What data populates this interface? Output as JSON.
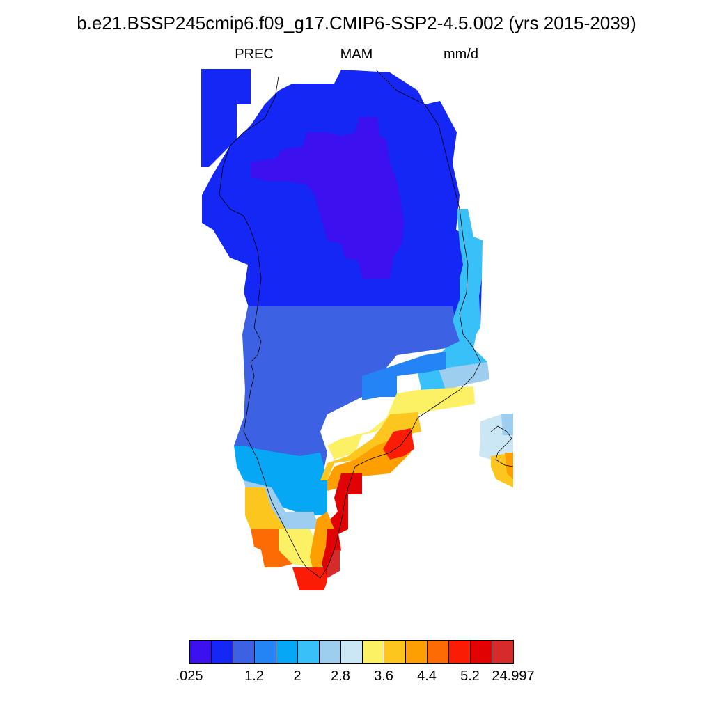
{
  "title": "b.e21.BSSP245cmip6.f09_g17.CMIP6-SSP2-4.5.002 (yrs 2015-2039)",
  "subtitle": {
    "left": "PREC",
    "center": "MAM",
    "right": "mm/d"
  },
  "colorbar": {
    "colors": [
      "#3d10f0",
      "#1427f5",
      "#3c62e3",
      "#2484f5",
      "#06a8f5",
      "#3ac0f8",
      "#9dcdef",
      "#cbe6f4",
      "#fcf064",
      "#fdc61f",
      "#fd9f00",
      "#fd6b05",
      "#fb1c06",
      "#e10303",
      "#d72b2b"
    ],
    "tick_labels": [
      ".025",
      "1.2",
      "2",
      "2.8",
      "3.6",
      "4.4",
      "5.2",
      "24.997"
    ]
  }
}
